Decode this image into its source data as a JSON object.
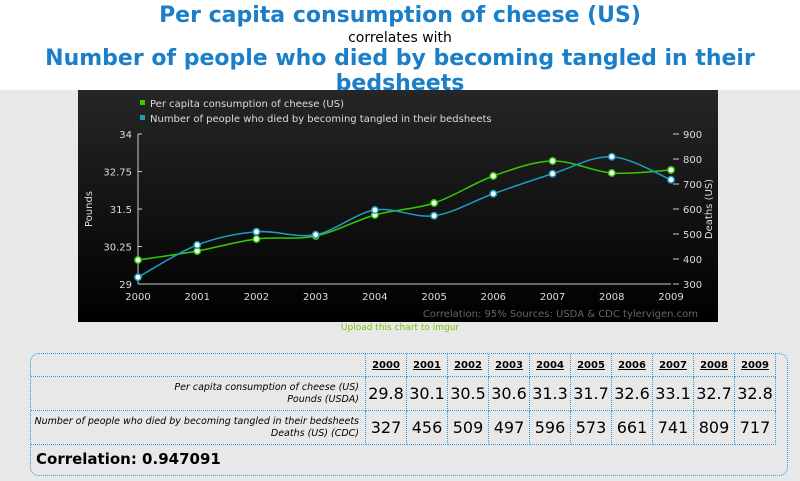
{
  "header": {
    "title1": "Per capita consumption of cheese (US)",
    "connector": "correlates with",
    "title2": "Number of people who died by becoming tangled in their bedsheets"
  },
  "chart_data": {
    "type": "line",
    "x": [
      2000,
      2001,
      2002,
      2003,
      2004,
      2005,
      2006,
      2007,
      2008,
      2009
    ],
    "series": [
      {
        "name": "Per capita consumption of cheese (US)",
        "values": [
          29.8,
          30.1,
          30.5,
          30.6,
          31.3,
          31.7,
          32.6,
          33.1,
          32.7,
          32.8
        ],
        "color": "#33cc00",
        "axis": "left"
      },
      {
        "name": "Number of people who died by becoming tangled in their bedsheets",
        "values": [
          327,
          456,
          509,
          497,
          596,
          573,
          661,
          741,
          809,
          717
        ],
        "color": "#1e9cc0",
        "axis": "right"
      }
    ],
    "ylabel": "Pounds",
    "y2label": "Deaths (US)",
    "ylim": [
      29,
      34
    ],
    "y2lim": [
      300,
      900
    ],
    "yticks": [
      "29",
      "30.25",
      "31.5",
      "32.75",
      "34"
    ],
    "y2ticks": [
      "300",
      "400",
      "500",
      "600",
      "700",
      "800",
      "900"
    ],
    "xticks": [
      "2000",
      "2001",
      "2002",
      "2003",
      "2004",
      "2005",
      "2006",
      "2007",
      "2008",
      "2009"
    ],
    "legend": "top-left",
    "footer": "Correlation: 95%    Sources: USDA & CDC    tylervigen.com"
  },
  "upload_link": "Upload this chart to imgur",
  "table": {
    "years": [
      "2000",
      "2001",
      "2002",
      "2003",
      "2004",
      "2005",
      "2006",
      "2007",
      "2008",
      "2009"
    ],
    "rows": [
      {
        "label": "Per capita consumption of cheese (US)",
        "sub": "Pounds (USDA)",
        "values": [
          "29.8",
          "30.1",
          "30.5",
          "30.6",
          "31.3",
          "31.7",
          "32.6",
          "33.1",
          "32.7",
          "32.8"
        ]
      },
      {
        "label": "Number of people who died by becoming tangled in their bedsheets",
        "sub": "Deaths (US) (CDC)",
        "values": [
          "327",
          "456",
          "509",
          "497",
          "596",
          "573",
          "661",
          "741",
          "809",
          "717"
        ]
      }
    ],
    "correlation": "Correlation: 0.947091"
  }
}
